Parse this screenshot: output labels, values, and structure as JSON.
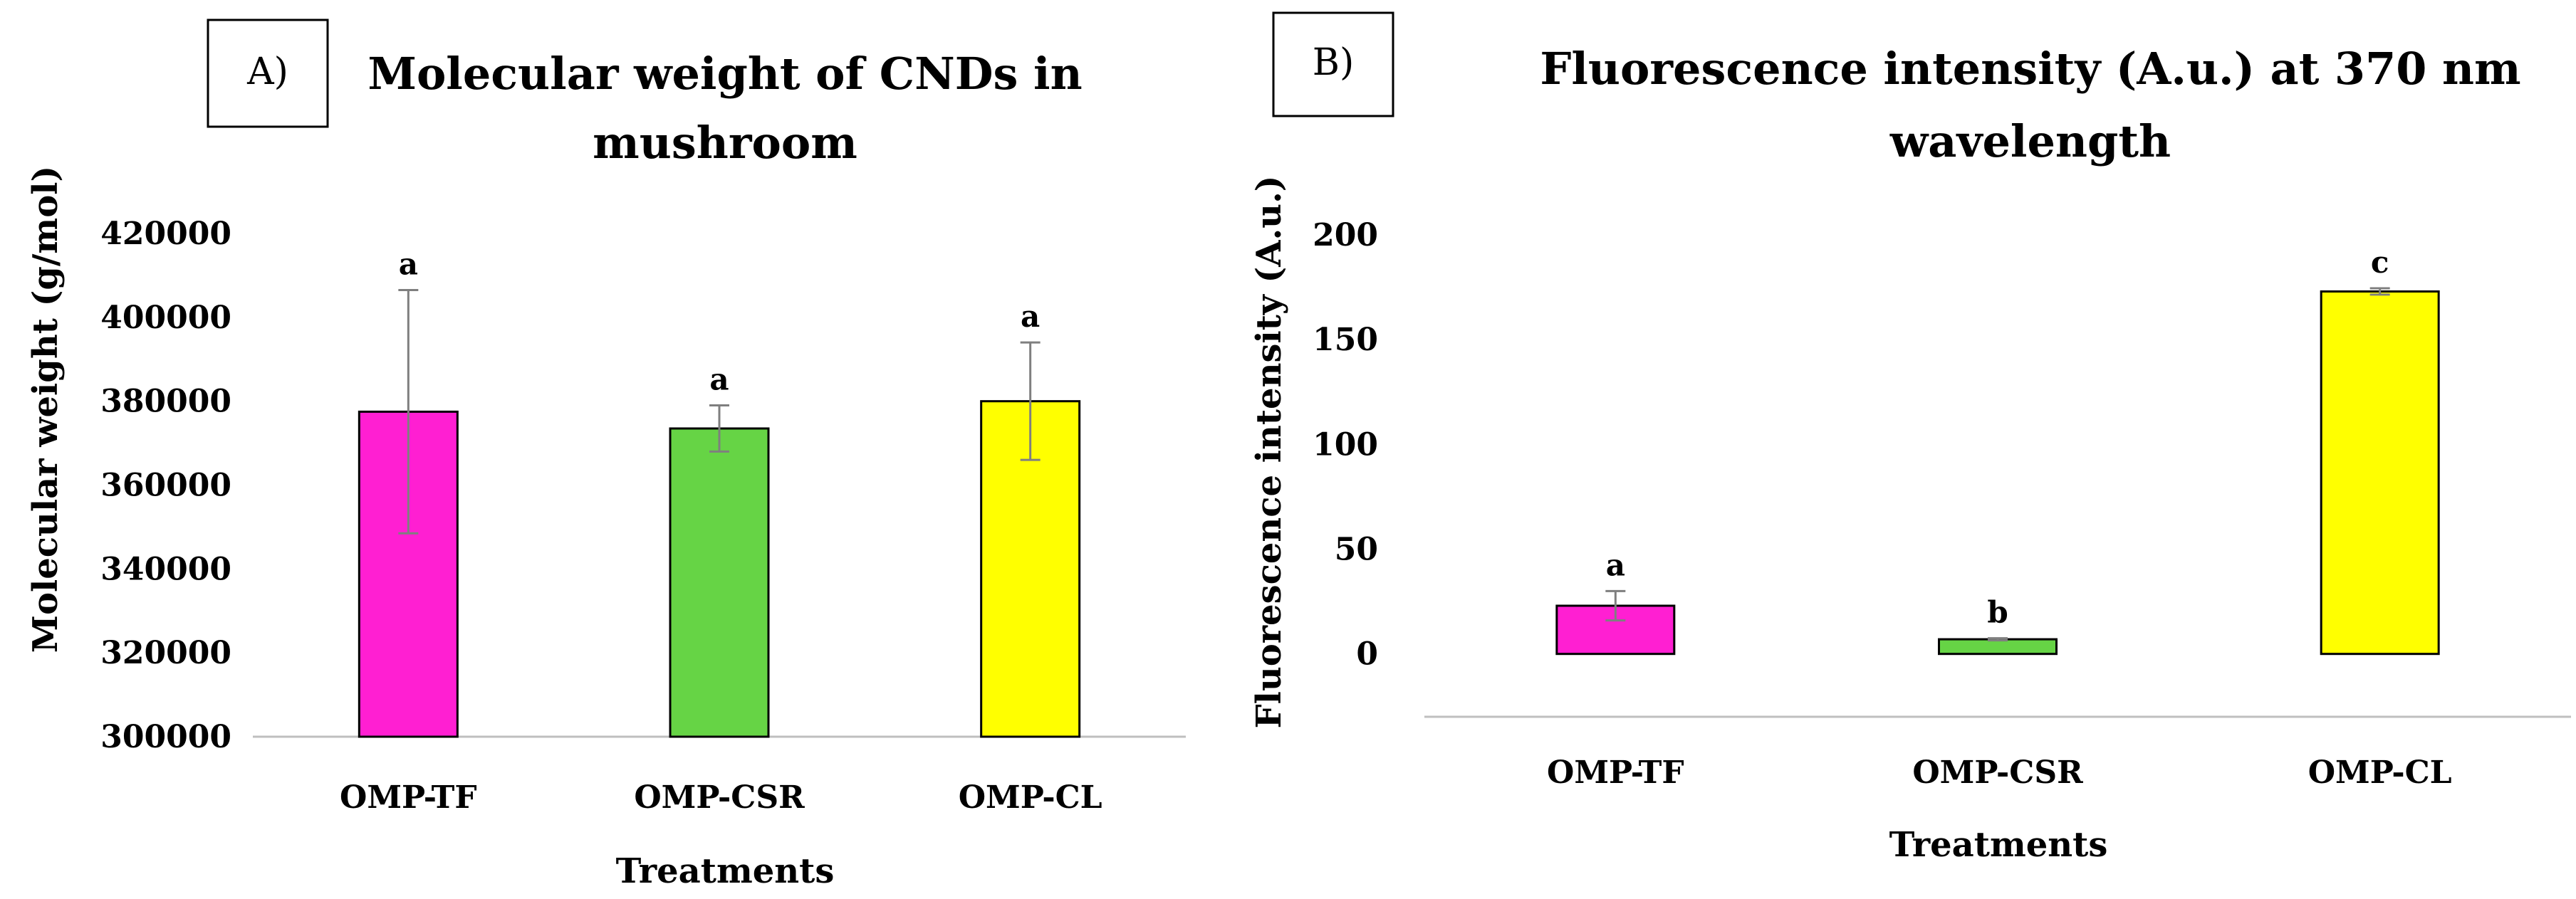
{
  "chart_data": [
    {
      "type": "bar",
      "panel_label": "A)",
      "title_lines": [
        "Molecular weight of CNDs in",
        "mushroom"
      ],
      "xlabel": "Treatments",
      "ylabel": "Molecular weight (g/mol)",
      "ylim": [
        300000,
        420000
      ],
      "yticks": [
        300000,
        320000,
        340000,
        360000,
        380000,
        400000,
        420000
      ],
      "ytick_labels": [
        "300000",
        "320000",
        "340000",
        "360000",
        "380000",
        "400000",
        "420000"
      ],
      "categories": [
        "OMP-TF",
        "OMP-CSR",
        "OMP-CL"
      ],
      "values": [
        377500,
        373500,
        380000
      ],
      "errors": [
        29000,
        5500,
        14000
      ],
      "significance": [
        "a",
        "a",
        "a"
      ],
      "colors": [
        "#ff1fd2",
        "#66d445",
        "#ffff00"
      ],
      "grid": false
    },
    {
      "type": "bar",
      "panel_label": "B)",
      "title_lines": [
        "Fluorescence intensity (A.u.) at 370 nm",
        "wavelength"
      ],
      "xlabel": "Treatments",
      "ylabel": "Fluorescence intensity (A.u.)",
      "ylim": [
        -30,
        200
      ],
      "yticks": [
        0,
        50,
        100,
        150,
        200
      ],
      "ytick_labels": [
        "0",
        "50",
        "100",
        "150",
        "200"
      ],
      "categories": [
        "OMP-TF",
        "OMP-CSR",
        "OMP-CL"
      ],
      "values": [
        23,
        7,
        173
      ],
      "errors": [
        7,
        0.5,
        1.5
      ],
      "significance": [
        "a",
        "b",
        "c"
      ],
      "colors": [
        "#ff1fd2",
        "#66d445",
        "#ffff00"
      ],
      "grid": false
    }
  ]
}
